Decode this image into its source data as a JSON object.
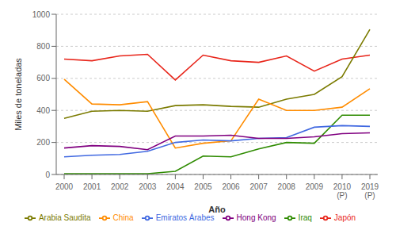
{
  "chart_data": {
    "type": "line",
    "categories": [
      "2000",
      "2001",
      "2002",
      "2003",
      "2004",
      "2005",
      "2006",
      "2007",
      "2008",
      "2009",
      "2010\n(P)",
      "2019\n(P)"
    ],
    "series": [
      {
        "name": "Japón",
        "color": "#E8251A",
        "values": [
          720,
          710,
          740,
          750,
          590,
          745,
          710,
          700,
          740,
          645,
          720,
          745
        ]
      },
      {
        "name": "Arabia Saudita",
        "color": "#7B7B00",
        "values": [
          350,
          395,
          400,
          395,
          430,
          435,
          425,
          420,
          470,
          500,
          610,
          905
        ]
      },
      {
        "name": "China",
        "color": "#FF8C00",
        "values": [
          595,
          440,
          435,
          455,
          165,
          195,
          210,
          470,
          400,
          400,
          420,
          535
        ]
      },
      {
        "name": "Iraq",
        "color": "#2E8B00",
        "values": [
          5,
          5,
          5,
          5,
          20,
          115,
          110,
          160,
          200,
          195,
          370,
          370
        ]
      },
      {
        "name": "Emiratos Árabes",
        "color": "#4169E1",
        "values": [
          110,
          120,
          125,
          145,
          200,
          215,
          210,
          225,
          230,
          295,
          305,
          300
        ]
      },
      {
        "name": "Hong Kong",
        "color": "#800080",
        "values": [
          165,
          180,
          175,
          155,
          240,
          240,
          245,
          225,
          225,
          235,
          255,
          260
        ]
      }
    ],
    "xlabel": "Año",
    "ylabel": "Miles de toneladas",
    "ylim": [
      0,
      1000
    ],
    "yticks": [
      0,
      200,
      400,
      600,
      800,
      1000
    ],
    "grid": true,
    "legend": "bottom"
  }
}
